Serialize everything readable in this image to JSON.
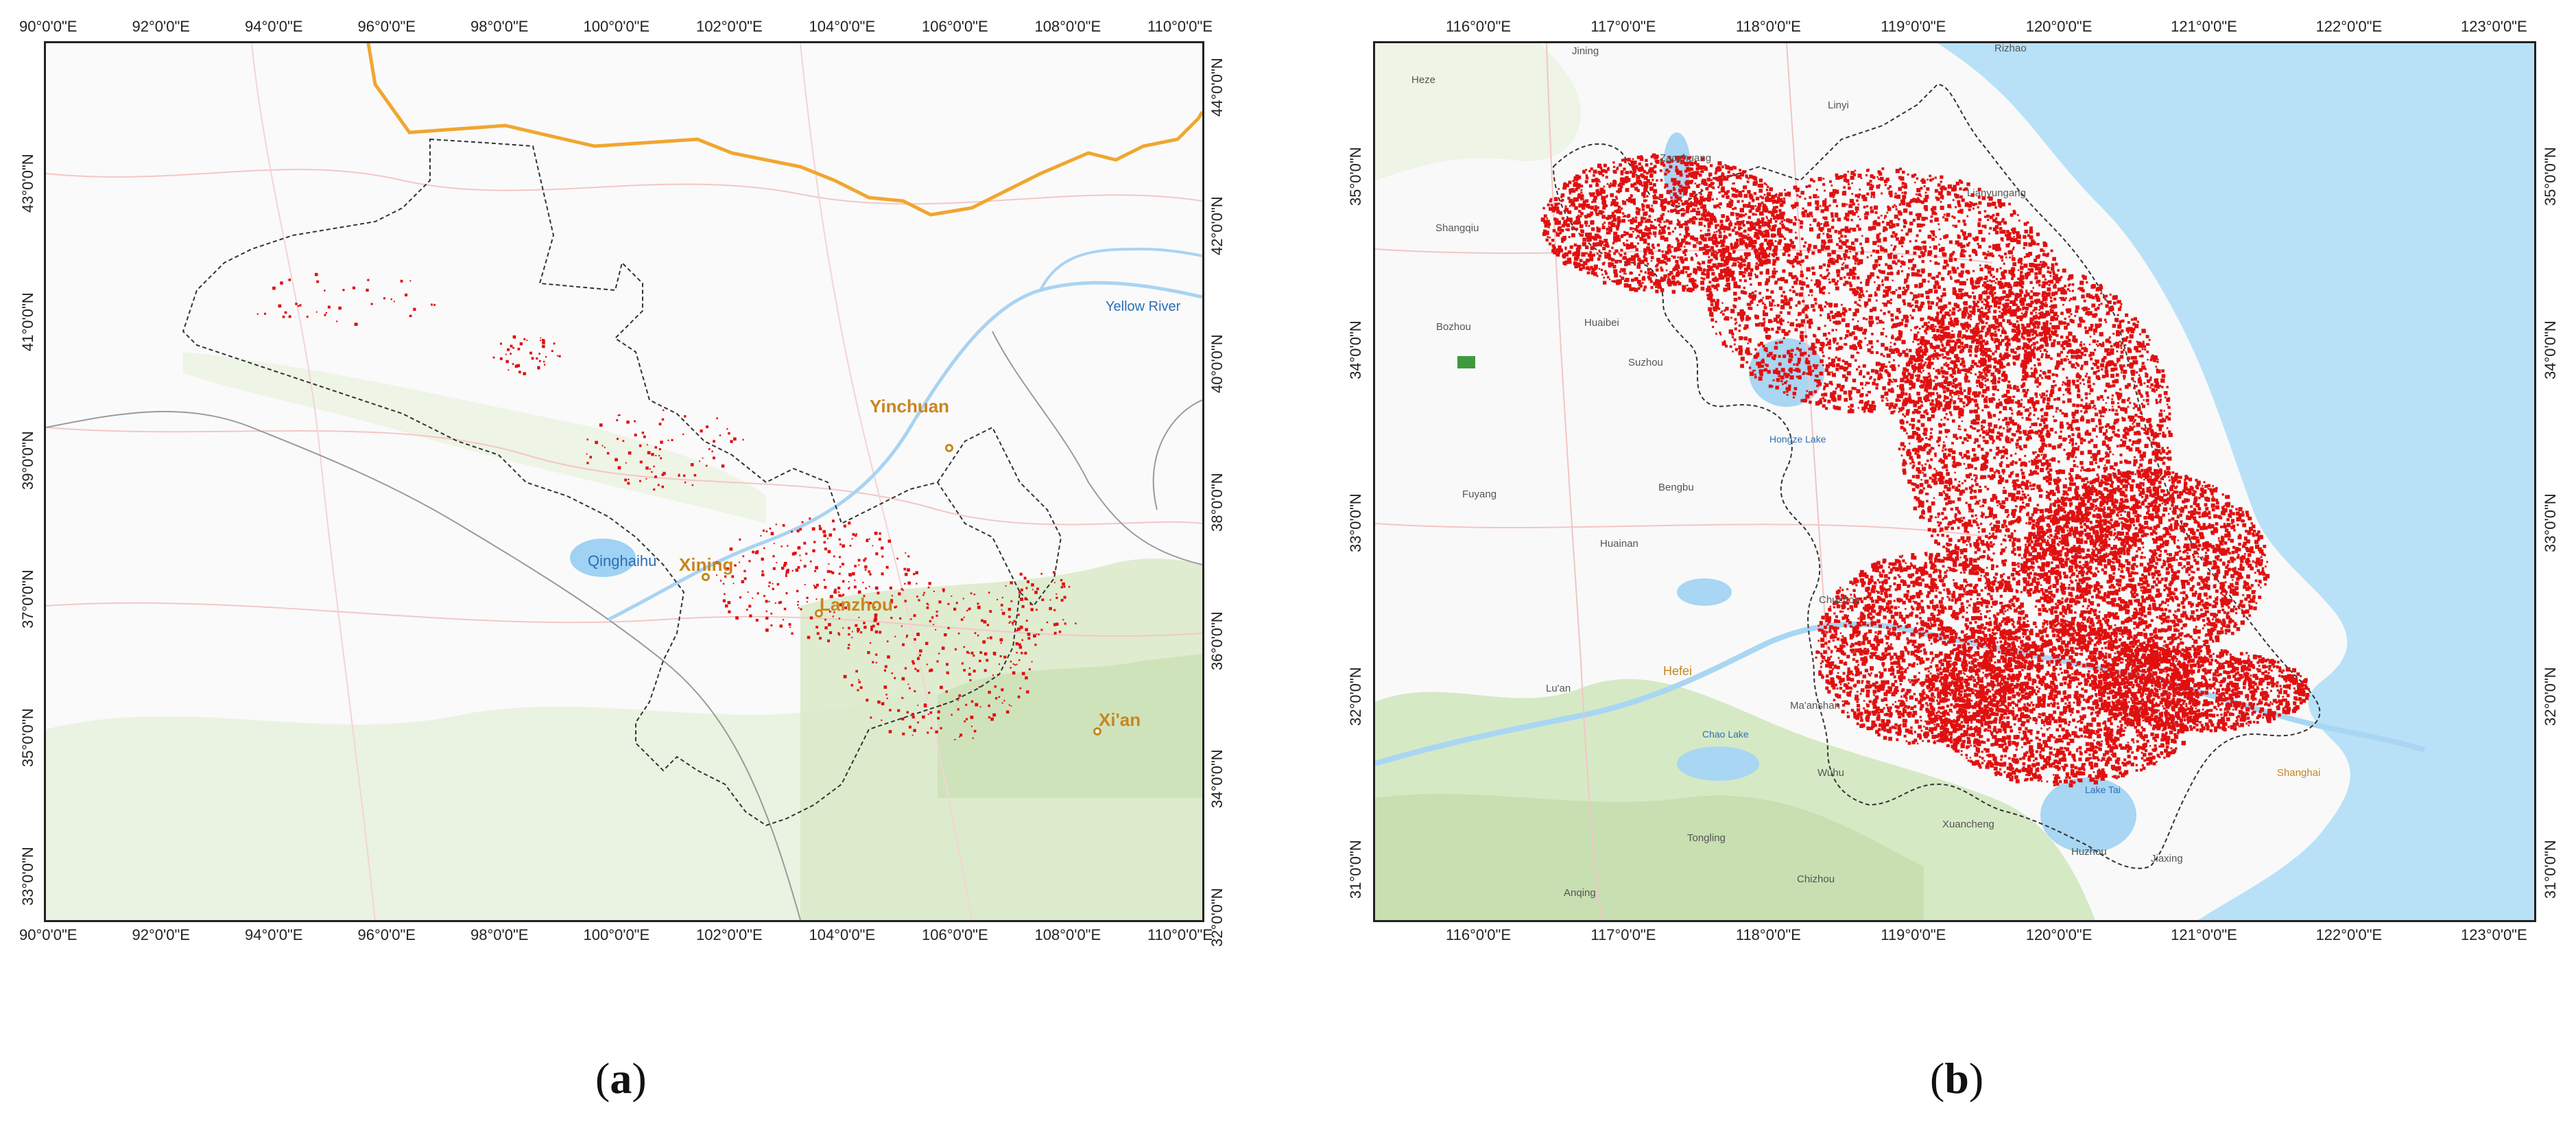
{
  "panel_a": {
    "caption_open": "(",
    "caption_letter": "a",
    "caption_close": ")",
    "lon_ticks": [
      "90°0'0\"E",
      "92°0'0\"E",
      "94°0'0\"E",
      "96°0'0\"E",
      "98°0'0\"E",
      "100°0'0\"E",
      "102°0'0\"E",
      "104°0'0\"E",
      "106°0'0\"E",
      "108°0'0\"E",
      "110°0'0\"E"
    ],
    "lat_ticks_left": [
      "43°0'0\"N",
      "41°0'0\"N",
      "39°0'0\"N",
      "37°0'0\"N",
      "35°0'0\"N",
      "33°0'0\"N"
    ],
    "lat_ticks_right": [
      "44°0'0\"N",
      "42°0'0\"N",
      "40°0'0\"N",
      "38°0'0\"N",
      "36°0'0\"N",
      "34°0'0\"N",
      "32°0'0\"N"
    ],
    "places": {
      "yinchuan": "Yinchuan",
      "xining": "Xining",
      "lanzhou": "Lanzhou",
      "xian": "Xi'an",
      "qinghai": "Qinghaihu",
      "yellow_river": "Yellow River"
    }
  },
  "panel_b": {
    "caption_open": "(",
    "caption_letter": "b",
    "caption_close": ")",
    "lon_ticks": [
      "116°0'0\"E",
      "117°0'0\"E",
      "118°0'0\"E",
      "119°0'0\"E",
      "120°0'0\"E",
      "121°0'0\"E",
      "122°0'0\"E",
      "123°0'0\"E"
    ],
    "lat_ticks": [
      "35°0'0\"N",
      "34°0'0\"N",
      "33°0'0\"N",
      "32°0'0\"N",
      "31°0'0\"N"
    ],
    "places": {
      "heze": "Heze",
      "jining": "Jining",
      "zaozhuang": "Zaozhuang",
      "linyi": "Linyi",
      "rizhao": "Rizhao",
      "lianyungang": "Lianyungang",
      "shangqiu": "Shangqiu",
      "huaibei": "Huaibei",
      "suzhou_ah": "Suzhou",
      "bozhou": "Bozhou",
      "fuyang": "Fuyang",
      "bengbu": "Bengbu",
      "huainan": "Huainan",
      "chuzhou": "Chuzhou",
      "luan": "Lu'an",
      "hefei": "Hefei",
      "maanshan": "Ma'anshan",
      "wuhu": "Wuhu",
      "tongling": "Tongling",
      "anqing": "Anqing",
      "chizhou": "Chizhou",
      "xuancheng": "Xuancheng",
      "huzhou": "Huzhou",
      "jiaxing": "Jiaxing",
      "shanghai": "Shanghai",
      "hongze": "Hongze Lake",
      "chaohu": "Chao Lake",
      "taihu": "Lake Tai"
    }
  }
}
